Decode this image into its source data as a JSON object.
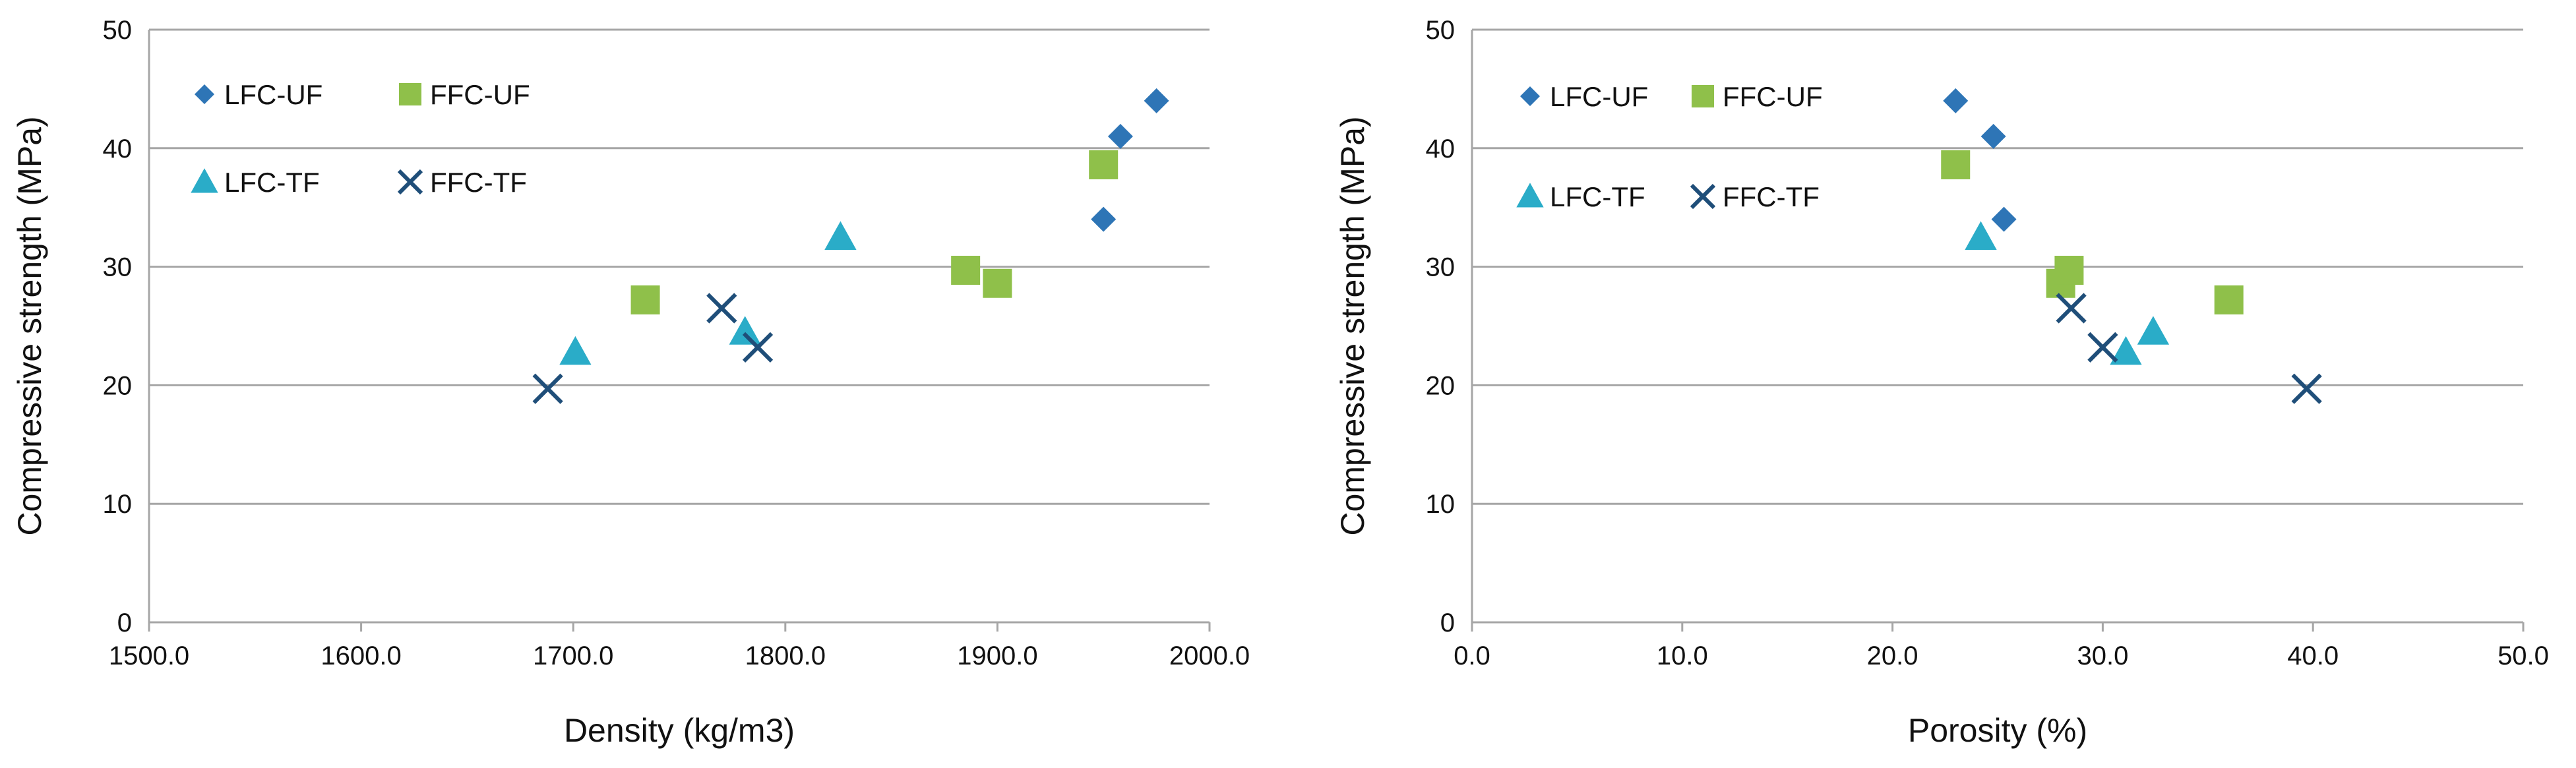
{
  "colors": {
    "LFC-UF": "#2E75B6",
    "FFC-UF": "#8FC04A",
    "LFC-TF": "#2AACC8",
    "FFC-TF": "#1F4E79",
    "grid": "#A6A6A6",
    "axis": "#A6A6A6"
  },
  "chart_data": [
    {
      "type": "scatter",
      "title": "",
      "xlabel": "Density (kg/m3)",
      "ylabel": "Compressive strength (MPa)",
      "xlim": [
        1500,
        2000
      ],
      "ylim": [
        0,
        50
      ],
      "x_ticks": [
        1500,
        1600,
        1700,
        1800,
        1900,
        2000
      ],
      "x_tick_labels": [
        "1500.0",
        "1600.0",
        "1700.0",
        "1800.0",
        "1900.0",
        "2000.0"
      ],
      "y_ticks": [
        0,
        10,
        20,
        30,
        40,
        50
      ],
      "y_tick_labels": [
        "0",
        "10",
        "20",
        "30",
        "40",
        "50"
      ],
      "grid": "horizontal",
      "legend_position": "top-left",
      "series": [
        {
          "name": "LFC-UF",
          "marker": "diamond",
          "x": [
            1950,
            1958,
            1975
          ],
          "y": [
            34.0,
            41.0,
            44.0
          ]
        },
        {
          "name": "FFC-UF",
          "marker": "square",
          "x": [
            1734,
            1885,
            1900,
            1950
          ],
          "y": [
            27.2,
            29.7,
            28.6,
            38.6
          ]
        },
        {
          "name": "LFC-TF",
          "marker": "triangle",
          "x": [
            1701,
            1781,
            1826
          ],
          "y": [
            22.8,
            24.5,
            32.5
          ]
        },
        {
          "name": "FFC-TF",
          "marker": "cross",
          "x": [
            1688,
            1770,
            1787
          ],
          "y": [
            19.7,
            26.5,
            23.2
          ]
        }
      ]
    },
    {
      "type": "scatter",
      "title": "",
      "xlabel": "Porosity (%)",
      "ylabel": "Compressive strength (MPa)",
      "xlim": [
        0,
        50
      ],
      "ylim": [
        0,
        50
      ],
      "x_ticks": [
        0,
        10,
        20,
        30,
        40,
        50
      ],
      "x_tick_labels": [
        "0.0",
        "10.0",
        "20.0",
        "30.0",
        "40.0",
        "50.0"
      ],
      "y_ticks": [
        0,
        10,
        20,
        30,
        40,
        50
      ],
      "y_tick_labels": [
        "0",
        "10",
        "20",
        "30",
        "40",
        "50"
      ],
      "grid": "horizontal",
      "legend_position": "top-left",
      "series": [
        {
          "name": "LFC-UF",
          "marker": "diamond",
          "x": [
            23.0,
            24.8,
            25.3
          ],
          "y": [
            44.0,
            41.0,
            34.0
          ]
        },
        {
          "name": "FFC-UF",
          "marker": "square",
          "x": [
            23.0,
            28.0,
            28.4,
            36.0
          ],
          "y": [
            38.6,
            28.6,
            29.7,
            27.2
          ]
        },
        {
          "name": "LFC-TF",
          "marker": "triangle",
          "x": [
            24.2,
            31.1,
            32.4
          ],
          "y": [
            32.5,
            22.8,
            24.5
          ]
        },
        {
          "name": "FFC-TF",
          "marker": "cross",
          "x": [
            28.5,
            30.0,
            39.7
          ],
          "y": [
            26.5,
            23.2,
            19.7
          ]
        }
      ]
    }
  ]
}
